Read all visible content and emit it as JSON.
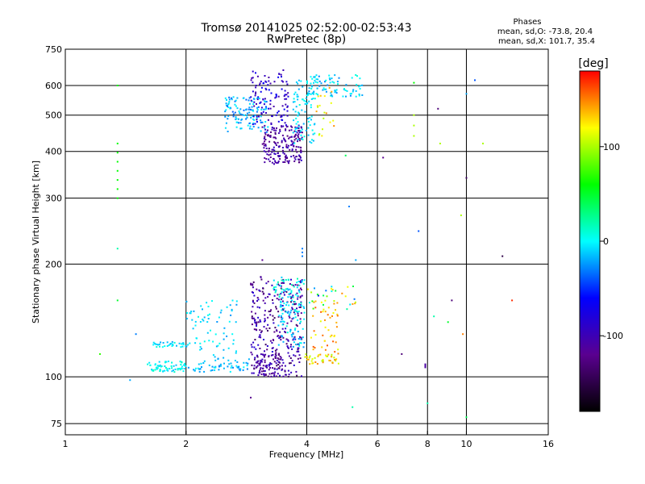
{
  "chart_data": {
    "type": "scatter",
    "title": "Tromsø 20141025 02:52:00-02:53:43",
    "subtitle": "RwPretec (8p)",
    "xlabel": "Frequency [MHz]",
    "ylabel": "Stationary phase Virtual Height [km]",
    "x_scale": "log2",
    "y_scale": "log",
    "xlim": [
      1,
      16
    ],
    "ylim": [
      70,
      750
    ],
    "x_ticks": [
      "1",
      "2",
      "4",
      "6",
      "8",
      "10",
      "16"
    ],
    "x_tick_values": [
      1,
      2,
      4,
      6,
      8,
      10,
      16
    ],
    "y_ticks": [
      "75",
      "100",
      "200",
      "300",
      "400",
      "500",
      "600",
      "750"
    ],
    "y_tick_values": [
      75,
      100,
      200,
      300,
      400,
      500,
      600,
      750
    ],
    "grid": true,
    "stats": {
      "heading": "Phases",
      "line1": "mean, sd,O: -73.8, 20.4",
      "line2": "mean, sd,X: 101.7, 35.4"
    },
    "colorbar": {
      "label": "[deg]",
      "range": [
        -180,
        180
      ],
      "ticks": [
        100,
        0,
        -100
      ],
      "tick_labels": [
        "100",
        "0",
        "-100"
      ],
      "colors": [
        "#000000",
        "#5a0090",
        "#0000ff",
        "#00ffff",
        "#00ff00",
        "#ffff00",
        "#ff0000"
      ]
    },
    "clusters": [
      {
        "f": [
          1.6,
          2.0
        ],
        "h": [
          103,
          110
        ],
        "p": [
          -15,
          15
        ],
        "n": 70
      },
      {
        "f": [
          1.65,
          2.05
        ],
        "h": [
          120,
          124
        ],
        "p": [
          -20,
          10
        ],
        "n": 35
      },
      {
        "f": [
          2.0,
          2.9
        ],
        "h": [
          103,
          112
        ],
        "p": [
          -30,
          0
        ],
        "n": 60
      },
      {
        "f": [
          2.0,
          2.7
        ],
        "h": [
          112,
          160
        ],
        "p": [
          -25,
          5
        ],
        "n": 70
      },
      {
        "f": [
          2.9,
          3.9
        ],
        "h": [
          100,
          185
        ],
        "p": [
          -140,
          -80
        ],
        "n": 320
      },
      {
        "f": [
          3.0,
          3.5
        ],
        "h": [
          100,
          115
        ],
        "p": [
          -130,
          -90
        ],
        "n": 60
      },
      {
        "f": [
          3.3,
          3.95
        ],
        "h": [
          155,
          185
        ],
        "p": [
          -20,
          20
        ],
        "n": 60
      },
      {
        "f": [
          3.4,
          3.95
        ],
        "h": [
          120,
          160
        ],
        "p": [
          -30,
          10
        ],
        "n": 70
      },
      {
        "f": [
          3.95,
          4.8
        ],
        "h": [
          108,
          115
        ],
        "p": [
          100,
          150
        ],
        "n": 40
      },
      {
        "f": [
          4.1,
          4.8
        ],
        "h": [
          115,
          160
        ],
        "p": [
          110,
          160
        ],
        "n": 45
      },
      {
        "f": [
          4.0,
          5.3
        ],
        "h": [
          150,
          175
        ],
        "p": [
          -60,
          150
        ],
        "n": 30
      },
      {
        "f": [
          2.5,
          3.2
        ],
        "h": [
          450,
          560
        ],
        "p": [
          -40,
          0
        ],
        "n": 120
      },
      {
        "f": [
          2.9,
          3.6
        ],
        "h": [
          470,
          660
        ],
        "p": [
          -110,
          -60
        ],
        "n": 110
      },
      {
        "f": [
          3.1,
          3.9
        ],
        "h": [
          370,
          470
        ],
        "p": [
          -130,
          -90
        ],
        "n": 200
      },
      {
        "f": [
          3.7,
          4.2
        ],
        "h": [
          420,
          620
        ],
        "p": [
          -20,
          10
        ],
        "n": 90
      },
      {
        "f": [
          4.0,
          5.5
        ],
        "h": [
          560,
          640
        ],
        "p": [
          -30,
          10
        ],
        "n": 80
      },
      {
        "f": [
          4.2,
          4.7
        ],
        "h": [
          440,
          620
        ],
        "p": [
          100,
          150
        ],
        "n": 20
      }
    ],
    "points": [
      {
        "f": 1.35,
        "h": [
          300,
          420
        ],
        "p": 60,
        "n": 7
      },
      {
        "f": 1.35,
        "h": [
          600,
          605
        ],
        "p": 60,
        "n": 1
      },
      {
        "f": 1.35,
        "h": [
          160,
          162
        ],
        "p": 50,
        "n": 1
      },
      {
        "f": 1.35,
        "h": [
          220,
          222
        ],
        "p": 20,
        "n": 1
      },
      {
        "f": 1.22,
        "h": [
          115,
          117
        ],
        "p": 70,
        "n": 1
      },
      {
        "f": 1.5,
        "h": [
          130,
          132
        ],
        "p": -30,
        "n": 1
      },
      {
        "f": 5.1,
        "h": [
          285,
          287
        ],
        "p": -30,
        "n": 1
      },
      {
        "f": 6.2,
        "h": [
          385,
          387
        ],
        "p": -120,
        "n": 1
      },
      {
        "f": 7.4,
        "h": [
          610,
          612
        ],
        "p": 60,
        "n": 1
      },
      {
        "f": 7.4,
        "h": [
          440,
          500
        ],
        "p": 100,
        "n": 3
      },
      {
        "f": 7.6,
        "h": [
          245,
          247
        ],
        "p": -40,
        "n": 1
      },
      {
        "f": 7.9,
        "h": [
          106,
          108
        ],
        "p": -110,
        "n": 4
      },
      {
        "f": 8.5,
        "h": [
          520,
          522
        ],
        "p": -130,
        "n": 1
      },
      {
        "f": 8.6,
        "h": [
          420,
          422
        ],
        "p": 100,
        "n": 1
      },
      {
        "f": 9.2,
        "h": [
          160,
          162
        ],
        "p": -130,
        "n": 1
      },
      {
        "f": 9.7,
        "h": [
          270,
          272
        ],
        "p": 100,
        "n": 1
      },
      {
        "f": 10.0,
        "h": [
          340,
          342
        ],
        "p": -140,
        "n": 1
      },
      {
        "f": 10.0,
        "h": [
          570,
          572
        ],
        "p": -20,
        "n": 1
      },
      {
        "f": 10.5,
        "h": [
          620,
          622
        ],
        "p": -40,
        "n": 1
      },
      {
        "f": 12.3,
        "h": [
          210,
          212
        ],
        "p": -150,
        "n": 1
      },
      {
        "f": 13.0,
        "h": [
          160,
          162
        ],
        "p": 170,
        "n": 1
      },
      {
        "f": 11.0,
        "h": [
          420,
          422
        ],
        "p": 100,
        "n": 1
      },
      {
        "f": 9.8,
        "h": [
          130,
          132
        ],
        "p": 150,
        "n": 1
      },
      {
        "f": 9.0,
        "h": [
          140,
          142
        ],
        "p": 50,
        "n": 1
      },
      {
        "f": 8.3,
        "h": [
          145,
          147
        ],
        "p": 20,
        "n": 1
      },
      {
        "f": 6.9,
        "h": [
          115,
          117
        ],
        "p": -130,
        "n": 1
      },
      {
        "f": 5.3,
        "h": [
          205,
          207
        ],
        "p": -20,
        "n": 1
      },
      {
        "f": 5.0,
        "h": [
          390,
          392
        ],
        "p": 40,
        "n": 1
      },
      {
        "f": 10.0,
        "h": [
          78,
          80
        ],
        "p": 40,
        "n": 1
      },
      {
        "f": 8.0,
        "h": [
          85,
          87
        ],
        "p": 20,
        "n": 1
      },
      {
        "f": 1.45,
        "h": [
          98,
          100
        ],
        "p": -20,
        "n": 1
      },
      {
        "f": 2.9,
        "h": [
          88,
          90
        ],
        "p": -120,
        "n": 1
      },
      {
        "f": 5.2,
        "h": [
          83,
          85
        ],
        "p": 20,
        "n": 1
      },
      {
        "f": 3.1,
        "h": [
          205,
          207
        ],
        "p": -120,
        "n": 1
      },
      {
        "f": 3.9,
        "h": [
          210,
          220
        ],
        "p": -30,
        "n": 3
      }
    ]
  }
}
